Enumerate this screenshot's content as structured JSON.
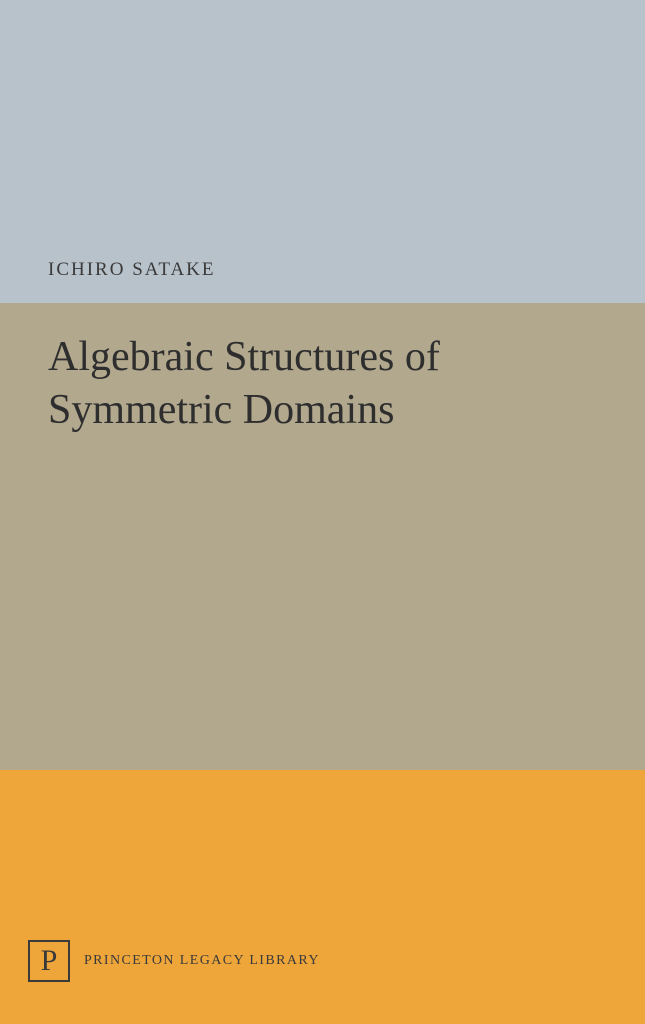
{
  "cover": {
    "author": "ICHIRO SATAKE",
    "title_line1": "Algebraic Structures of",
    "title_line2": "Symmetric Domains",
    "publisher_logo_letter": "P",
    "publisher_name": "PRINCETON LEGACY LIBRARY"
  },
  "style": {
    "top_band_color": "#b8c2cb",
    "title_band_color": "#b2a88e",
    "bottom_band_color": "#eea63a",
    "author_color": "#3a3a3a",
    "author_fontsize": 19,
    "title_color": "#2e2e2e",
    "title_fontsize": 42,
    "publisher_text_color": "#3a3a3a",
    "publisher_fontsize": 14,
    "logo_border_color": "#3a3a3a",
    "logo_letter_color": "#3a3a3a",
    "logo_size": 42,
    "logo_fontsize": 30,
    "top_band_height": 303,
    "title_band_height": 467,
    "bottom_band_height": 254
  }
}
